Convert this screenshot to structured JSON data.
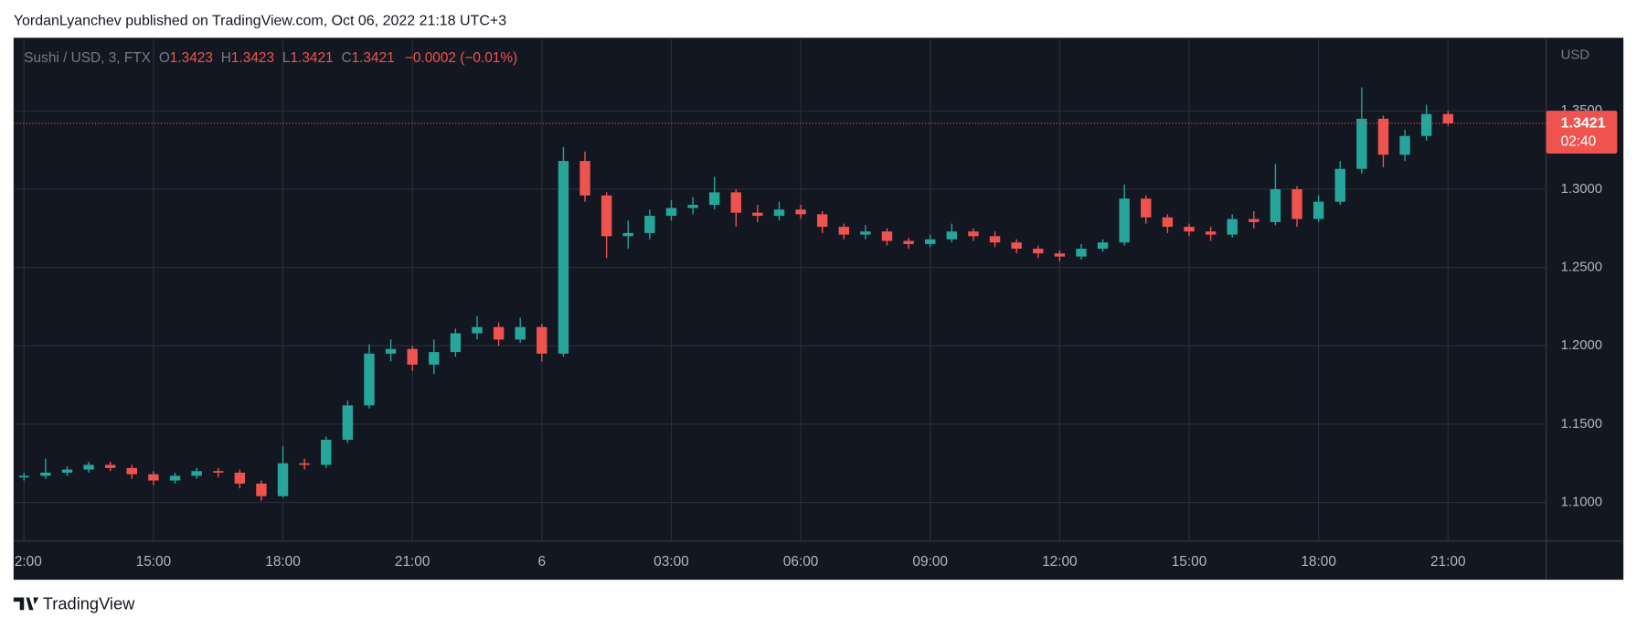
{
  "header": {
    "title": "YordanLyanchev published on TradingView.com, Oct 06, 2022 21:18 UTC+3"
  },
  "chart_data": {
    "type": "candlestick",
    "symbol": "Sushi / USD, 3, FTX",
    "legend": {
      "o_label": "O",
      "o": 1.3423,
      "h_label": "H",
      "h": 1.3423,
      "l_label": "L",
      "l": 1.3421,
      "c_label": "C",
      "c": 1.3421,
      "change": "−0.0002 (−0.01%)"
    },
    "currency": "USD",
    "last_price": 1.3421,
    "countdown": "02:40",
    "up_color": "#26a69a",
    "down_color": "#ef5350",
    "grid": true,
    "categories": [
      "2:00",
      null,
      null,
      null,
      null,
      null,
      "15:00",
      null,
      null,
      null,
      null,
      null,
      "18:00",
      null,
      null,
      null,
      null,
      null,
      "21:00",
      null,
      null,
      null,
      null,
      null,
      "6",
      null,
      null,
      null,
      null,
      null,
      "03:00",
      null,
      null,
      null,
      null,
      null,
      "06:00",
      null,
      null,
      null,
      null,
      null,
      "09:00",
      null,
      null,
      null,
      null,
      null,
      "12:00",
      null,
      null,
      null,
      null,
      null,
      "15:00",
      null,
      null,
      null,
      null,
      null,
      "18:00",
      null,
      null,
      null,
      null,
      null,
      "21:00"
    ],
    "open": [
      1.116,
      1.117,
      1.119,
      1.121,
      1.124,
      1.122,
      1.118,
      1.114,
      1.117,
      1.12,
      1.119,
      1.112,
      1.104,
      1.125,
      1.124,
      1.14,
      1.162,
      1.195,
      1.198,
      1.188,
      1.196,
      1.208,
      1.212,
      1.204,
      1.212,
      1.195,
      1.318,
      1.296,
      1.27,
      1.272,
      1.283,
      1.288,
      1.29,
      1.298,
      1.285,
      1.283,
      1.287,
      1.284,
      1.276,
      1.271,
      1.273,
      1.267,
      1.265,
      1.268,
      1.273,
      1.27,
      1.266,
      1.262,
      1.259,
      1.257,
      1.262,
      1.266,
      1.294,
      1.282,
      1.276,
      1.273,
      1.271,
      1.281,
      1.279,
      1.3,
      1.281,
      1.292,
      1.313,
      1.345,
      1.322,
      1.334,
      1.348
    ],
    "high": [
      1.119,
      1.128,
      1.123,
      1.126,
      1.126,
      1.124,
      1.12,
      1.119,
      1.122,
      1.122,
      1.121,
      1.114,
      1.136,
      1.128,
      1.142,
      1.165,
      1.201,
      1.204,
      1.2,
      1.204,
      1.211,
      1.219,
      1.215,
      1.218,
      1.214,
      1.327,
      1.324,
      1.298,
      1.28,
      1.287,
      1.293,
      1.295,
      1.308,
      1.3,
      1.29,
      1.292,
      1.29,
      1.286,
      1.278,
      1.277,
      1.275,
      1.269,
      1.271,
      1.278,
      1.275,
      1.273,
      1.268,
      1.264,
      1.261,
      1.265,
      1.268,
      1.303,
      1.296,
      1.284,
      1.278,
      1.276,
      1.284,
      1.286,
      1.316,
      1.302,
      1.296,
      1.318,
      1.365,
      1.347,
      1.338,
      1.354,
      1.35
    ],
    "low": [
      1.114,
      1.115,
      1.117,
      1.119,
      1.12,
      1.115,
      1.111,
      1.112,
      1.115,
      1.116,
      1.109,
      1.101,
      1.103,
      1.121,
      1.122,
      1.138,
      1.16,
      1.19,
      1.184,
      1.182,
      1.193,
      1.204,
      1.2,
      1.202,
      1.19,
      1.193,
      1.292,
      1.256,
      1.262,
      1.268,
      1.28,
      1.284,
      1.287,
      1.276,
      1.279,
      1.28,
      1.281,
      1.272,
      1.268,
      1.268,
      1.264,
      1.262,
      1.263,
      1.266,
      1.267,
      1.263,
      1.259,
      1.256,
      1.254,
      1.255,
      1.26,
      1.264,
      1.278,
      1.272,
      1.27,
      1.267,
      1.269,
      1.275,
      1.277,
      1.276,
      1.279,
      1.29,
      1.31,
      1.314,
      1.318,
      1.331,
      1.3405
    ],
    "close": [
      1.117,
      1.119,
      1.121,
      1.124,
      1.122,
      1.118,
      1.114,
      1.117,
      1.12,
      1.119,
      1.112,
      1.104,
      1.125,
      1.124,
      1.14,
      1.162,
      1.195,
      1.198,
      1.188,
      1.196,
      1.208,
      1.212,
      1.204,
      1.212,
      1.195,
      1.318,
      1.296,
      1.27,
      1.272,
      1.283,
      1.288,
      1.29,
      1.298,
      1.285,
      1.283,
      1.287,
      1.284,
      1.276,
      1.271,
      1.273,
      1.267,
      1.265,
      1.268,
      1.273,
      1.27,
      1.266,
      1.262,
      1.259,
      1.257,
      1.262,
      1.266,
      1.294,
      1.282,
      1.276,
      1.273,
      1.271,
      1.281,
      1.279,
      1.3,
      1.281,
      1.292,
      1.313,
      1.345,
      1.322,
      1.334,
      1.348,
      1.3421
    ],
    "ylim": [
      1.0753,
      1.3967
    ],
    "yticks": [
      {
        "value": 1.1,
        "label": "1.1000"
      },
      {
        "value": 1.15,
        "label": "1.1500"
      },
      {
        "value": 1.2,
        "label": "1.2000"
      },
      {
        "value": 1.25,
        "label": "1.2500"
      },
      {
        "value": 1.3,
        "label": "1.3000"
      },
      {
        "value": 1.35,
        "label": "1.3500"
      }
    ]
  },
  "footer": {
    "brand": "TradingView"
  }
}
